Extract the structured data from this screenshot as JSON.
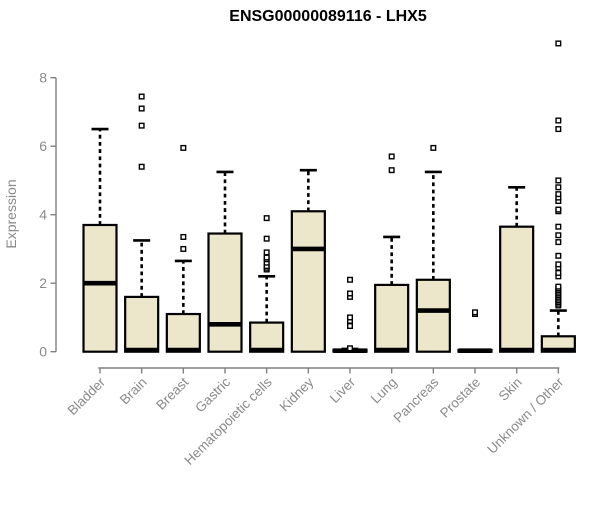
{
  "chart_data": {
    "type": "boxplot",
    "title": "ENSG00000089116 - LHX5",
    "ylabel": "Expression",
    "xlabel": "",
    "yticks": [
      0,
      2,
      4,
      6,
      8
    ],
    "ylim": [
      0,
      9.2
    ],
    "grid": false,
    "legend": false,
    "categories": [
      "Bladder",
      "Brain",
      "Breast",
      "Gastric",
      "Hematopoietic cells",
      "Kidney",
      "Liver",
      "Lung",
      "Pancreas",
      "Prostate",
      "Skin",
      "Unknown / Other"
    ],
    "boxes": [
      {
        "whisker_low": 0,
        "q1": 0,
        "median": 2.0,
        "q3": 3.7,
        "whisker_high": 6.5,
        "outliers": []
      },
      {
        "whisker_low": 0,
        "q1": 0,
        "median": 0.05,
        "q3": 1.6,
        "whisker_high": 3.25,
        "outliers": [
          5.4,
          6.6,
          7.1,
          7.45
        ]
      },
      {
        "whisker_low": 0,
        "q1": 0,
        "median": 0.05,
        "q3": 1.1,
        "whisker_high": 2.65,
        "outliers": [
          3.0,
          3.35,
          5.95
        ]
      },
      {
        "whisker_low": 0,
        "q1": 0,
        "median": 0.8,
        "q3": 3.45,
        "whisker_high": 5.25,
        "outliers": []
      },
      {
        "whisker_low": 0,
        "q1": 0,
        "median": 0.05,
        "q3": 0.85,
        "whisker_high": 2.2,
        "outliers": [
          2.4,
          2.45,
          2.5,
          2.6,
          2.7,
          2.75,
          2.9,
          3.3,
          3.9
        ]
      },
      {
        "whisker_low": 0,
        "q1": 0,
        "median": 3.0,
        "q3": 4.1,
        "whisker_high": 5.3,
        "outliers": []
      },
      {
        "whisker_low": 0,
        "q1": 0,
        "median": 0.03,
        "q3": 0.06,
        "whisker_high": 0.08,
        "outliers": [
          0.1,
          0.75,
          0.9,
          1.0,
          1.6,
          1.7,
          2.1
        ]
      },
      {
        "whisker_low": 0,
        "q1": 0,
        "median": 0.05,
        "q3": 1.95,
        "whisker_high": 3.35,
        "outliers": [
          5.3,
          5.7
        ]
      },
      {
        "whisker_low": 0,
        "q1": 0,
        "median": 1.2,
        "q3": 2.1,
        "whisker_high": 5.25,
        "outliers": [
          5.95
        ]
      },
      {
        "whisker_low": 0,
        "q1": 0,
        "median": 0.03,
        "q3": 0.05,
        "whisker_high": 0.06,
        "outliers": [
          1.1,
          1.15
        ]
      },
      {
        "whisker_low": 0,
        "q1": 0,
        "median": 0.05,
        "q3": 3.65,
        "whisker_high": 4.8,
        "outliers": []
      },
      {
        "whisker_low": 0,
        "q1": 0,
        "median": 0.05,
        "q3": 0.45,
        "whisker_high": 1.2,
        "outliers": [
          1.35,
          1.4,
          1.45,
          1.5,
          1.55,
          1.6,
          1.65,
          1.7,
          1.75,
          1.8,
          1.85,
          1.9,
          2.2,
          2.3,
          2.45,
          2.55,
          2.8,
          3.2,
          3.4,
          3.65,
          4.1,
          4.15,
          4.4,
          4.5,
          4.6,
          4.8,
          5.0,
          6.5,
          6.75,
          9.0
        ]
      }
    ],
    "colors": {
      "box_fill": "#ECE6CB",
      "line": "#000000",
      "axis_line": "#808080",
      "axis_text": "#8a8a8a",
      "title": "#000000",
      "background": "#ffffff"
    }
  }
}
